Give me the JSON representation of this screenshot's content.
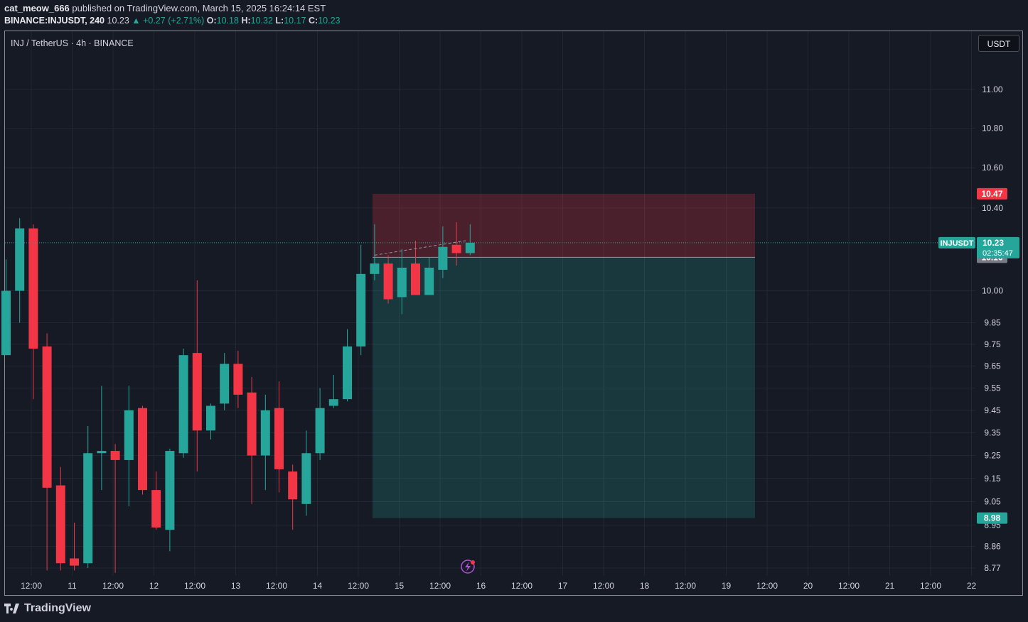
{
  "header": {
    "user": "cat_meow_666",
    "published": "published on TradingView.com, March 15, 2025 16:24:14 EST",
    "symbol_line": "BINANCE:INJUSDT, 240",
    "last": "10.23",
    "change": "+0.27 (+2.71%)",
    "open_label": "O:",
    "open": "10.18",
    "high_label": "H:",
    "high": "10.32",
    "low_label": "L:",
    "low": "10.17",
    "close_label": "C:",
    "close": "10.23"
  },
  "legend": {
    "title": "INJ / TetherUS · 4h · BINANCE"
  },
  "currency_button": "USDT",
  "footer": {
    "logo_text": "TradingView"
  },
  "colors": {
    "up": "#26a69a",
    "down": "#f23645",
    "bg": "#161a25",
    "grid": "#232733"
  },
  "chart_data": {
    "type": "candlestick",
    "title": "INJ / TetherUS · 4h · BINANCE",
    "y_scale": "log",
    "ylim": [
      8.72,
      11.25
    ],
    "y_ticks": [
      "11.00",
      "10.80",
      "10.60",
      "10.40",
      "10.00",
      "9.85",
      "9.75",
      "9.65",
      "9.55",
      "9.45",
      "9.35",
      "9.25",
      "9.15",
      "9.05",
      "8.95",
      "8.86",
      "8.77"
    ],
    "x_ticks": [
      "12:00",
      "11",
      "12:00",
      "12",
      "12:00",
      "13",
      "12:00",
      "14",
      "12:00",
      "15",
      "12:00",
      "16",
      "12:00",
      "17",
      "12:00",
      "18",
      "12:00",
      "19",
      "12:00",
      "20",
      "12:00",
      "21",
      "12:00",
      "22"
    ],
    "candles": [
      {
        "o": 9.7,
        "h": 10.15,
        "l": 9.7,
        "c": 10.0
      },
      {
        "o": 10.0,
        "h": 10.35,
        "l": 9.85,
        "c": 10.3
      },
      {
        "o": 10.3,
        "h": 10.32,
        "l": 9.5,
        "c": 9.73
      },
      {
        "o": 9.74,
        "h": 9.8,
        "l": 8.76,
        "c": 9.11
      },
      {
        "o": 9.12,
        "h": 9.2,
        "l": 8.76,
        "c": 8.79
      },
      {
        "o": 8.81,
        "h": 8.96,
        "l": 8.76,
        "c": 8.78
      },
      {
        "o": 8.79,
        "h": 9.38,
        "l": 8.77,
        "c": 9.26
      },
      {
        "o": 9.26,
        "h": 9.56,
        "l": 9.1,
        "c": 9.27
      },
      {
        "o": 9.27,
        "h": 9.3,
        "l": 8.75,
        "c": 9.23
      },
      {
        "o": 9.23,
        "h": 9.56,
        "l": 9.03,
        "c": 9.45
      },
      {
        "o": 9.46,
        "h": 9.47,
        "l": 9.08,
        "c": 9.1
      },
      {
        "o": 9.1,
        "h": 9.18,
        "l": 8.93,
        "c": 8.94
      },
      {
        "o": 8.93,
        "h": 9.28,
        "l": 8.84,
        "c": 9.27
      },
      {
        "o": 9.26,
        "h": 9.73,
        "l": 9.24,
        "c": 9.7
      },
      {
        "o": 9.71,
        "h": 10.05,
        "l": 9.18,
        "c": 9.36
      },
      {
        "o": 9.36,
        "h": 9.48,
        "l": 9.32,
        "c": 9.47
      },
      {
        "o": 9.48,
        "h": 9.71,
        "l": 9.45,
        "c": 9.66
      },
      {
        "o": 9.66,
        "h": 9.72,
        "l": 9.46,
        "c": 9.52
      },
      {
        "o": 9.53,
        "h": 9.6,
        "l": 9.04,
        "c": 9.25
      },
      {
        "o": 9.25,
        "h": 9.52,
        "l": 9.1,
        "c": 9.45
      },
      {
        "o": 9.46,
        "h": 9.58,
        "l": 9.09,
        "c": 9.19
      },
      {
        "o": 9.18,
        "h": 9.21,
        "l": 8.93,
        "c": 9.06
      },
      {
        "o": 9.04,
        "h": 9.36,
        "l": 8.99,
        "c": 9.26
      },
      {
        "o": 9.26,
        "h": 9.55,
        "l": 9.23,
        "c": 9.46
      },
      {
        "o": 9.47,
        "h": 9.61,
        "l": 9.46,
        "c": 9.5
      },
      {
        "o": 9.5,
        "h": 9.82,
        "l": 9.49,
        "c": 9.74
      },
      {
        "o": 9.74,
        "h": 10.22,
        "l": 9.7,
        "c": 10.08
      },
      {
        "o": 10.08,
        "h": 10.32,
        "l": 10.05,
        "c": 10.13
      },
      {
        "o": 10.13,
        "h": 10.17,
        "l": 9.94,
        "c": 9.96
      },
      {
        "o": 9.97,
        "h": 10.2,
        "l": 9.89,
        "c": 10.11
      },
      {
        "o": 10.13,
        "h": 10.24,
        "l": 9.98,
        "c": 9.98
      },
      {
        "o": 9.98,
        "h": 10.16,
        "l": 9.98,
        "c": 10.11
      },
      {
        "o": 10.1,
        "h": 10.31,
        "l": 10.06,
        "c": 10.21
      },
      {
        "o": 10.22,
        "h": 10.33,
        "l": 10.12,
        "c": 10.18
      },
      {
        "o": 10.18,
        "h": 10.32,
        "l": 10.17,
        "c": 10.23
      }
    ],
    "position": {
      "stop_loss": 10.47,
      "entry": 10.16,
      "target": 8.98
    },
    "price_labels": {
      "stop": "10.47",
      "current_symbol": "INJUSDT",
      "current_price": "10.23",
      "countdown": "02:35:47",
      "entry": "10.16",
      "target": "8.98"
    }
  }
}
